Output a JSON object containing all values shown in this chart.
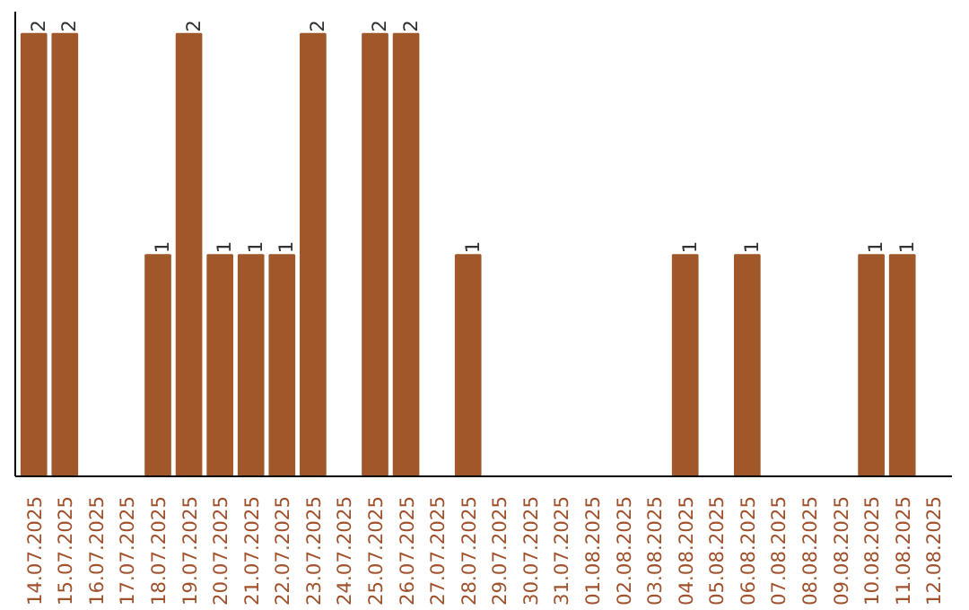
{
  "chart_data": {
    "type": "bar",
    "categories": [
      "14.07.2025",
      "15.07.2025",
      "16.07.2025",
      "17.07.2025",
      "18.07.2025",
      "19.07.2025",
      "20.07.2025",
      "21.07.2025",
      "22.07.2025",
      "23.07.2025",
      "24.07.2025",
      "25.07.2025",
      "26.07.2025",
      "27.07.2025",
      "28.07.2025",
      "29.07.2025",
      "30.07.2025",
      "31.07.2025",
      "01.08.2025",
      "02.08.2025",
      "03.08.2025",
      "04.08.2025",
      "05.08.2025",
      "06.08.2025",
      "07.08.2025",
      "08.08.2025",
      "09.08.2025",
      "10.08.2025",
      "11.08.2025",
      "12.08.2025"
    ],
    "values": [
      2,
      2,
      0,
      0,
      1,
      2,
      1,
      1,
      1,
      2,
      0,
      2,
      2,
      0,
      1,
      0,
      0,
      0,
      0,
      0,
      0,
      1,
      0,
      1,
      0,
      0,
      0,
      1,
      1,
      0
    ],
    "value_labels": [
      "2",
      "2",
      null,
      null,
      "1",
      "2",
      "1",
      "1",
      "1",
      "2",
      null,
      "2",
      "2",
      null,
      "1",
      null,
      null,
      null,
      null,
      null,
      null,
      "1",
      null,
      "1",
      null,
      null,
      null,
      "1",
      "1",
      null
    ],
    "color": "#a0582a"
  }
}
